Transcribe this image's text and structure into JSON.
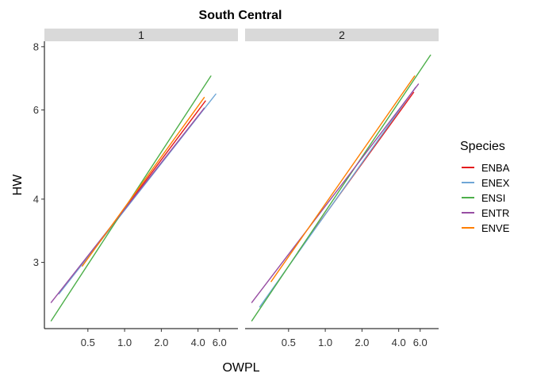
{
  "chart_data": {
    "type": "line",
    "title": "South Central",
    "xlabel": "OWPL",
    "ylabel": "HW",
    "x_scale": "log",
    "y_scale": "log",
    "x_ticks": [
      0.5,
      1.0,
      2.0,
      4.0,
      6.0
    ],
    "x_tick_labels": [
      "0.5",
      "1.0",
      "2.0",
      "4.0",
      "6.0"
    ],
    "y_ticks": [
      3,
      4,
      6,
      8
    ],
    "y_tick_labels": [
      "3",
      "4",
      "6",
      "8"
    ],
    "xlim": [
      0.22,
      8.5
    ],
    "ylim": [
      2.22,
      8.2
    ],
    "grid": false,
    "legend": {
      "title": "Species",
      "position": "right"
    },
    "panels": [
      {
        "label": "1",
        "series": [
          {
            "name": "ENBA",
            "color": "#E41A1C",
            "x": [
              0.6,
              4.6
            ],
            "y": [
              3.25,
              6.25
            ]
          },
          {
            "name": "ENEX",
            "color": "#6FA6D6",
            "x": [
              0.29,
              5.6
            ],
            "y": [
              2.6,
              6.45
            ]
          },
          {
            "name": "ENSI",
            "color": "#4DAF4A",
            "x": [
              0.25,
              5.1
            ],
            "y": [
              2.3,
              7.0
            ]
          },
          {
            "name": "ENTR",
            "color": "#984EA3",
            "x": [
              0.25,
              4.5
            ],
            "y": [
              2.5,
              6.05
            ]
          },
          {
            "name": "ENVE",
            "color": "#FF7F00",
            "x": [
              0.45,
              4.5
            ],
            "y": [
              2.95,
              6.35
            ]
          }
        ]
      },
      {
        "label": "2",
        "series": [
          {
            "name": "ENBA",
            "color": "#E41A1C",
            "x": [
              0.6,
              5.3
            ],
            "y": [
              3.15,
              6.5
            ]
          },
          {
            "name": "ENEX",
            "color": "#6FA6D6",
            "x": [
              0.29,
              5.5
            ],
            "y": [
              2.45,
              6.65
            ]
          },
          {
            "name": "ENSI",
            "color": "#4DAF4A",
            "x": [
              0.25,
              7.3
            ],
            "y": [
              2.3,
              7.7
            ]
          },
          {
            "name": "ENTR",
            "color": "#984EA3",
            "x": [
              0.25,
              5.8
            ],
            "y": [
              2.5,
              6.75
            ]
          },
          {
            "name": "ENVE",
            "color": "#FF7F00",
            "x": [
              0.36,
              5.4
            ],
            "y": [
              2.75,
              7.0
            ]
          }
        ]
      }
    ]
  }
}
